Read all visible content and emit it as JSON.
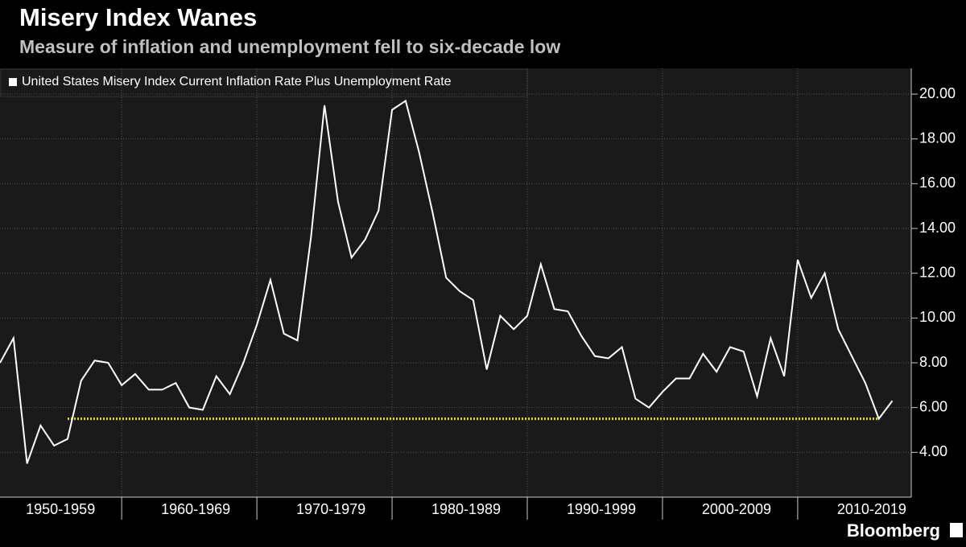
{
  "chart_data": {
    "type": "line",
    "title": "Misery Index Wanes",
    "subtitle": "Measure of inflation and unemployment fell to six-decade low",
    "source": "Bloomberg",
    "x": [
      1951,
      1952,
      1953,
      1954,
      1955,
      1956,
      1957,
      1958,
      1959,
      1960,
      1961,
      1962,
      1963,
      1964,
      1965,
      1966,
      1967,
      1968,
      1969,
      1970,
      1971,
      1972,
      1973,
      1974,
      1975,
      1976,
      1977,
      1978,
      1979,
      1980,
      1981,
      1982,
      1983,
      1984,
      1985,
      1986,
      1987,
      1988,
      1989,
      1990,
      1991,
      1992,
      1993,
      1994,
      1995,
      1996,
      1997,
      1998,
      1999,
      2000,
      2001,
      2002,
      2003,
      2004,
      2005,
      2006,
      2007,
      2008,
      2009,
      2010,
      2011,
      2012,
      2013,
      2014,
      2015,
      2016,
      2017
    ],
    "series": [
      {
        "name": "United States Misery Index Current Inflation Rate Plus Unemployment Rate",
        "color": "#ffffff",
        "values": [
          8.0,
          9.1,
          3.5,
          5.2,
          4.3,
          4.6,
          7.2,
          8.1,
          8.0,
          7.0,
          7.5,
          6.8,
          6.8,
          7.1,
          6.0,
          5.9,
          7.4,
          6.6,
          8.0,
          9.7,
          11.7,
          9.3,
          9.0,
          13.6,
          19.5,
          15.2,
          12.7,
          13.5,
          14.8,
          19.3,
          19.7,
          17.4,
          14.7,
          11.8,
          11.2,
          10.8,
          7.7,
          10.1,
          9.5,
          10.1,
          12.4,
          10.4,
          10.3,
          9.2,
          8.3,
          8.2,
          8.7,
          6.4,
          6.0,
          6.7,
          7.3,
          7.3,
          8.4,
          7.6,
          8.7,
          8.5,
          6.5,
          9.1,
          7.4,
          12.6,
          10.9,
          12.0,
          9.5,
          8.3,
          7.1,
          5.5,
          6.3
        ]
      }
    ],
    "reference": {
      "value": 5.5,
      "x": [
        1956,
        2016
      ],
      "color": "#e6e600"
    },
    "xlim": [
      1951,
      2018.4
    ],
    "xticks": [
      {
        "value": 1955,
        "label": "1950-1959"
      },
      {
        "value": 1965,
        "label": "1960-1969"
      },
      {
        "value": 1975,
        "label": "1970-1979"
      },
      {
        "value": 1985,
        "label": "1980-1989"
      },
      {
        "value": 1995,
        "label": "1990-1999"
      },
      {
        "value": 2005,
        "label": "2000-2009"
      },
      {
        "value": 2015,
        "label": "2010-2019"
      }
    ],
    "ylim": [
      2,
      21.15
    ],
    "yticks": [
      {
        "value": 4,
        "label": "4.00"
      },
      {
        "value": 6,
        "label": "6.00"
      },
      {
        "value": 8,
        "label": "8.00"
      },
      {
        "value": 10,
        "label": "10.00"
      },
      {
        "value": 12,
        "label": "12.00"
      },
      {
        "value": 14,
        "label": "14.00"
      },
      {
        "value": 16,
        "label": "16.00"
      },
      {
        "value": 18,
        "label": "18.00"
      },
      {
        "value": 20,
        "label": "20.00"
      }
    ],
    "grid": true
  }
}
